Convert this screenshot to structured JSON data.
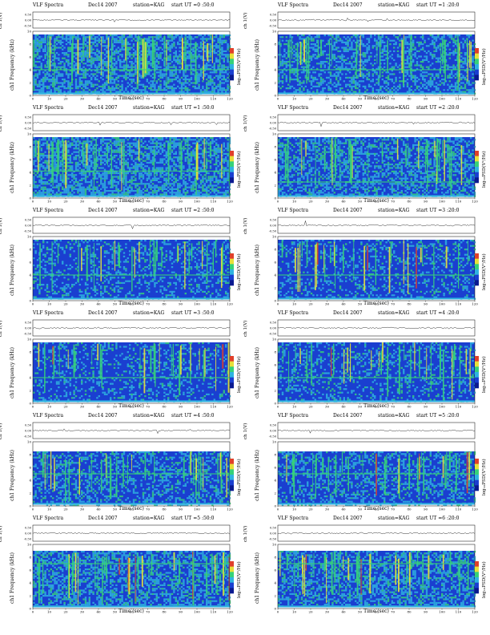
{
  "figure": {
    "title_left": "VLF Spectra",
    "date": "Dec14 2007",
    "station": "station=KAG"
  },
  "axes": {
    "xlabel": "Time  (sec)",
    "ylabel_top": "ch 1(V)",
    "ylabel_main": "Frequency (kHz)",
    "ylabel_channel": "ch1",
    "colorbar_label": "log₁₀PSD(V²/Hz)",
    "x_ticks": [
      "0",
      "10",
      "20",
      "30",
      "40",
      "50",
      "60",
      "70",
      "80",
      "90",
      "100",
      "110",
      "120"
    ],
    "y_ticks": [
      "0",
      "2",
      "4",
      "6",
      "8",
      "10"
    ],
    "top_ticks": [
      "0.50",
      "0.00",
      "-0.50"
    ]
  },
  "colors": {
    "background": "#1a3fd0",
    "mid": "#2fb3e0",
    "high": "#36d17a",
    "peak": "#e8e03a",
    "hot": "#e0402a"
  },
  "chart_data": [
    {
      "type": "heatmap",
      "start_ut": "start  UT =0 :50:0",
      "intensity": 0.72,
      "band_high": 9.5,
      "band_low": 0.2,
      "hline": 4.0,
      "xlim": [
        0,
        120
      ],
      "ylim": [
        0,
        10
      ]
    },
    {
      "type": "heatmap",
      "start_ut": "start  UT =1 :20:0",
      "intensity": 0.55,
      "band_high": 9.5,
      "band_low": 0.2,
      "hline": 4.0,
      "xlim": [
        0,
        120
      ],
      "ylim": [
        0,
        10
      ]
    },
    {
      "type": "heatmap",
      "start_ut": "start  UT =1 :50:0",
      "intensity": 0.75,
      "band_high": 9.5,
      "band_low": 0.2,
      "hline": 4.2,
      "xlim": [
        0,
        120
      ],
      "ylim": [
        0,
        10
      ]
    },
    {
      "type": "heatmap",
      "start_ut": "start  UT =2 :20:0",
      "intensity": 0.58,
      "band_high": 9.5,
      "band_low": 0.2,
      "hline": 2.5,
      "xlim": [
        0,
        120
      ],
      "ylim": [
        0,
        10
      ]
    },
    {
      "type": "heatmap",
      "start_ut": "start  UT =2 :50:0",
      "intensity": 0.35,
      "band_high": 9.5,
      "band_low": 0.2,
      "hline": 4.0,
      "xlim": [
        0,
        120
      ],
      "ylim": [
        0,
        10
      ]
    },
    {
      "type": "heatmap",
      "start_ut": "start  UT =3 :20:0",
      "intensity": 0.3,
      "band_high": 9.5,
      "band_low": 0.2,
      "hline": 4.0,
      "xlim": [
        0,
        120
      ],
      "ylim": [
        0,
        10
      ]
    },
    {
      "type": "heatmap",
      "start_ut": "start  UT =3 :50:0",
      "intensity": 0.32,
      "band_high": 9.5,
      "band_low": 0.2,
      "hline": 4.0,
      "xlim": [
        0,
        120
      ],
      "ylim": [
        0,
        10
      ]
    },
    {
      "type": "heatmap",
      "start_ut": "start  UT =4 :20:0",
      "intensity": 0.35,
      "band_high": 9.5,
      "band_low": 0.2,
      "hline": 4.0,
      "xlim": [
        0,
        120
      ],
      "ylim": [
        0,
        10
      ]
    },
    {
      "type": "heatmap",
      "start_ut": "start  UT =4 :50:0",
      "intensity": 0.45,
      "band_high": 8.5,
      "band_low": 0.2,
      "hline": 5.0,
      "xlim": [
        0,
        120
      ],
      "ylim": [
        0,
        10
      ]
    },
    {
      "type": "heatmap",
      "start_ut": "start  UT =5 :20:0",
      "intensity": 0.45,
      "band_high": 8.5,
      "band_low": 0.2,
      "hline": 5.0,
      "xlim": [
        0,
        120
      ],
      "ylim": [
        0,
        10
      ]
    },
    {
      "type": "heatmap",
      "start_ut": "start  UT =5 :50:0",
      "intensity": 0.62,
      "band_high": 9.0,
      "band_low": 0.2,
      "hline": 7.0,
      "xlim": [
        0,
        120
      ],
      "ylim": [
        0,
        10
      ]
    },
    {
      "type": "heatmap",
      "start_ut": "start  UT =6 :20:0",
      "intensity": 0.62,
      "band_high": 9.0,
      "band_low": 0.2,
      "hline": 7.0,
      "xlim": [
        0,
        120
      ],
      "ylim": [
        0,
        10
      ]
    }
  ]
}
